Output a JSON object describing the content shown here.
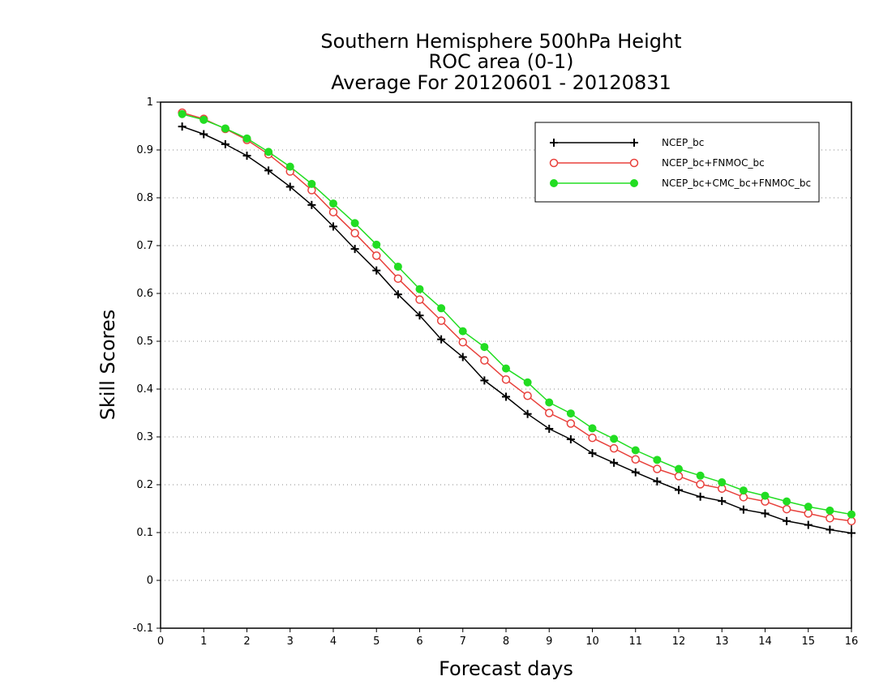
{
  "chart_data": {
    "type": "line",
    "title_lines": [
      "Southern Hemisphere 500hPa Height",
      "ROC area (0-1)",
      "Average For 20120601 - 20120831"
    ],
    "xlabel": "Forecast days",
    "ylabel": "Skill Scores",
    "xlim": [
      0,
      16
    ],
    "ylim": [
      -0.1,
      1
    ],
    "x_ticks": [
      0,
      1,
      2,
      3,
      4,
      5,
      6,
      7,
      8,
      9,
      10,
      11,
      12,
      13,
      14,
      15,
      16
    ],
    "x_tick_labels": [
      "0",
      "1",
      "2",
      "3",
      "4",
      "5",
      "6",
      "7",
      "8",
      "9",
      "10",
      "11",
      "12",
      "13",
      "14",
      "15",
      "16"
    ],
    "y_ticks": [
      -0.1,
      0,
      0.1,
      0.2,
      0.3,
      0.4,
      0.5,
      0.6,
      0.7,
      0.8,
      0.9,
      1
    ],
    "y_tick_labels": [
      "-0.1",
      "0",
      "0.1",
      "0.2",
      "0.3",
      "0.4",
      "0.5",
      "0.6",
      "0.7",
      "0.8",
      "0.9",
      "1"
    ],
    "grid": "horizontal dotted",
    "legend_position": "top-right",
    "x": [
      0.5,
      1,
      1.5,
      2,
      2.5,
      3,
      3.5,
      4,
      4.5,
      5,
      5.5,
      6,
      6.5,
      7,
      7.5,
      8,
      8.5,
      9,
      9.5,
      10,
      10.5,
      11,
      11.5,
      12,
      12.5,
      13,
      13.5,
      14,
      14.5,
      15,
      15.5,
      16
    ],
    "series": [
      {
        "name": "NCEP_bc",
        "color": "#000000",
        "marker": "plus",
        "values": [
          0.949,
          0.933,
          0.912,
          0.888,
          0.857,
          0.823,
          0.785,
          0.74,
          0.693,
          0.648,
          0.598,
          0.554,
          0.504,
          0.467,
          0.418,
          0.384,
          0.348,
          0.317,
          0.295,
          0.266,
          0.246,
          0.226,
          0.207,
          0.189,
          0.175,
          0.166,
          0.148,
          0.14,
          0.124,
          0.116,
          0.106,
          0.099
        ]
      },
      {
        "name": "NCEP_bc+FNMOC_bc",
        "color": "#e8413c",
        "marker": "open-circle",
        "values": [
          0.978,
          0.965,
          0.944,
          0.921,
          0.891,
          0.855,
          0.816,
          0.77,
          0.726,
          0.679,
          0.631,
          0.587,
          0.543,
          0.498,
          0.46,
          0.42,
          0.386,
          0.35,
          0.328,
          0.298,
          0.276,
          0.253,
          0.233,
          0.218,
          0.201,
          0.192,
          0.174,
          0.165,
          0.149,
          0.14,
          0.13,
          0.124
        ]
      },
      {
        "name": "NCEP_bc+CMC_bc+FNMOC_bc",
        "color": "#22dd22",
        "marker": "filled-circle",
        "values": [
          0.975,
          0.963,
          0.945,
          0.924,
          0.896,
          0.865,
          0.829,
          0.788,
          0.747,
          0.702,
          0.656,
          0.609,
          0.569,
          0.521,
          0.488,
          0.443,
          0.414,
          0.372,
          0.349,
          0.318,
          0.296,
          0.272,
          0.252,
          0.233,
          0.219,
          0.205,
          0.188,
          0.177,
          0.165,
          0.154,
          0.146,
          0.138
        ]
      }
    ]
  }
}
